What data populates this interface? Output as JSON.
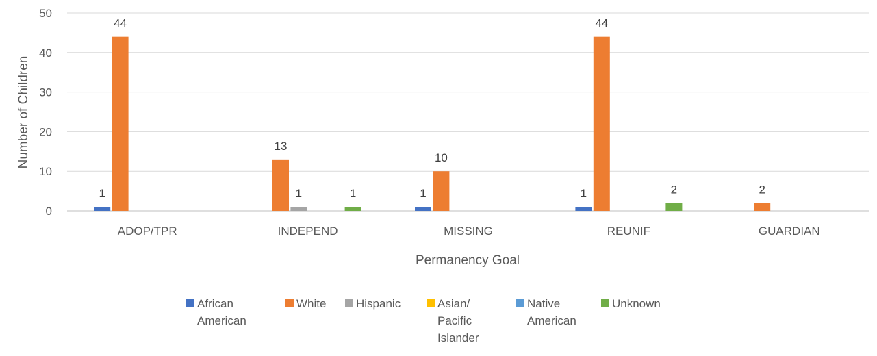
{
  "chart_data": {
    "type": "bar",
    "xlabel": "Permanency Goal",
    "ylabel": "Number of Children",
    "ylim": [
      0,
      50
    ],
    "yticks": [
      0,
      10,
      20,
      30,
      40,
      50
    ],
    "grid": true,
    "legend_position": "bottom",
    "categories": [
      "ADOP/TPR",
      "INDEPEND",
      "MISSING",
      "REUNIF",
      "GUARDIAN"
    ],
    "series": [
      {
        "name": "African American",
        "color": "#4472C4",
        "legend_lines": [
          "African",
          "American"
        ],
        "values": [
          1,
          0,
          1,
          1,
          0
        ]
      },
      {
        "name": "White",
        "color": "#ED7D31",
        "legend_lines": [
          "White"
        ],
        "values": [
          44,
          13,
          10,
          44,
          2
        ]
      },
      {
        "name": "Hispanic",
        "color": "#A5A5A5",
        "legend_lines": [
          "Hispanic"
        ],
        "values": [
          0,
          1,
          0,
          0,
          0
        ]
      },
      {
        "name": "Asian/ Pacific Islander",
        "color": "#FFC000",
        "legend_lines": [
          "Asian/",
          "Pacific",
          "Islander"
        ],
        "values": [
          0,
          0,
          0,
          0,
          0
        ]
      },
      {
        "name": "Native American",
        "color": "#5B9BD5",
        "legend_lines": [
          "Native",
          "American"
        ],
        "values": [
          0,
          0,
          0,
          0,
          0
        ]
      },
      {
        "name": "Unknown",
        "color": "#70AD47",
        "legend_lines": [
          "Unknown"
        ],
        "values": [
          0,
          1,
          0,
          2,
          0
        ]
      }
    ]
  }
}
